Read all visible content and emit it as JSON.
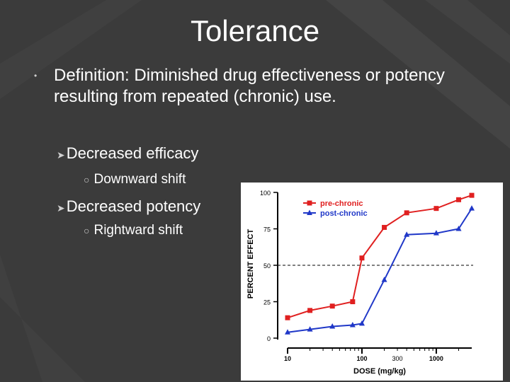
{
  "slide": {
    "title": "Tolerance",
    "definition": "Definition: Diminished drug effectiveness or potency resulting from repeated (chronic) use.",
    "sub1": "Decreased efficacy",
    "sub1_detail": "Downward shift",
    "sub2": "Decreased potency",
    "sub2_detail": "Rightward shift"
  },
  "colors": {
    "background": "#3b3b3b",
    "pre": "#e02020",
    "post": "#2038c8"
  },
  "chart_data": {
    "type": "line",
    "ylabel": "PERCENT EFFECT",
    "xlabel": "DOSE (mg/kg)",
    "ylim": [
      0,
      100
    ],
    "xscale": "log",
    "xlim": [
      10,
      3000
    ],
    "yticks": [
      "100",
      "75",
      "50",
      "25",
      "0"
    ],
    "xticks": [
      "10",
      "100",
      "300",
      "1000"
    ],
    "reference_line_y": 50,
    "legend": [
      "pre-chronic",
      "post-chronic"
    ],
    "series": [
      {
        "name": "pre-chronic",
        "x": [
          10,
          20,
          40,
          75,
          100,
          200,
          400,
          1000,
          2000,
          3000
        ],
        "values": [
          14,
          19,
          22,
          25,
          55,
          76,
          86,
          89,
          95,
          98
        ]
      },
      {
        "name": "post-chronic",
        "x": [
          10,
          20,
          40,
          75,
          100,
          200,
          400,
          1000,
          2000,
          3000
        ],
        "values": [
          4,
          6,
          8,
          9,
          10,
          40,
          71,
          72,
          75,
          89
        ]
      }
    ]
  }
}
